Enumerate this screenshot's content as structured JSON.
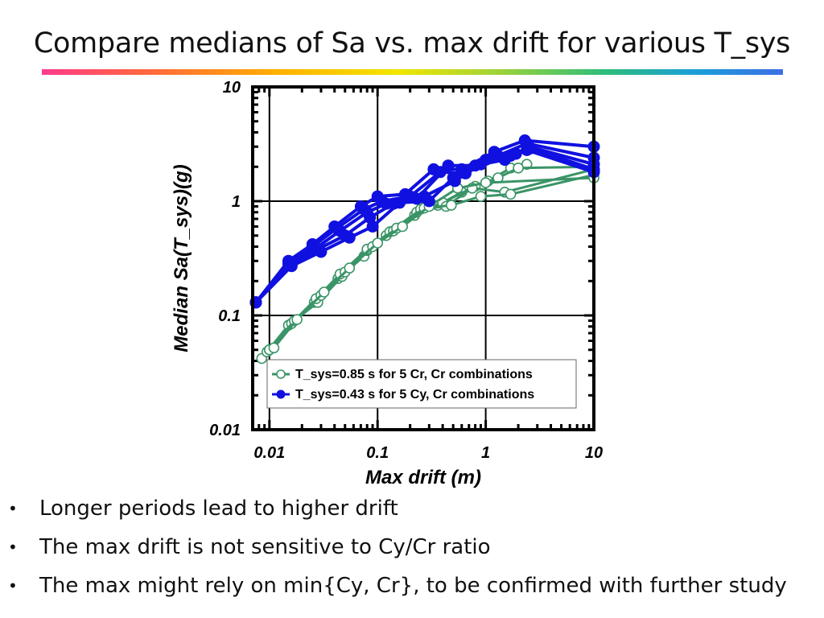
{
  "slide": {
    "title": "Compare medians of Sa vs. max drift for various T_sys",
    "bullets": [
      "Longer periods lead to higher drift",
      "The max drift is not sensitive to Cy/Cr ratio",
      "The max might rely on min{Cy, Cr}, to be confirmed with further study"
    ],
    "bullet_glyph": "•"
  },
  "chart_data": {
    "type": "line",
    "title": "",
    "xlabel": "Max drift (m)",
    "ylabel": "Median Sa(T_sys)(g)",
    "x_scale": "log",
    "y_scale": "log",
    "xlim": [
      0.007,
      10
    ],
    "ylim": [
      0.01,
      10
    ],
    "x_ticks": [
      0.01,
      0.1,
      1,
      10
    ],
    "x_tick_labels": [
      "0.01",
      "0.1",
      "1",
      "10"
    ],
    "y_ticks": [
      0.01,
      0.1,
      1,
      10
    ],
    "y_tick_labels": [
      "0.01",
      "0.1",
      "1",
      "10"
    ],
    "grid": true,
    "legend_position": "bottom-right",
    "series": [
      {
        "name": "T_sys=0.85 s for 5 Cr, Cr combinations",
        "color": "#3a9467",
        "marker": "open-circle",
        "curves": [
          [
            [
              0.0085,
              0.042
            ],
            [
              0.016,
              0.085
            ],
            [
              0.026,
              0.13
            ],
            [
              0.043,
              0.21
            ],
            [
              0.075,
              0.33
            ],
            [
              0.12,
              0.5
            ],
            [
              0.22,
              0.75
            ],
            [
              0.36,
              0.92
            ],
            [
              0.6,
              1.2
            ],
            [
              1.05,
              1.5
            ],
            [
              1.7,
              1.95
            ],
            [
              2.4,
              2.1
            ]
          ],
          [
            [
              0.0095,
              0.048
            ],
            [
              0.015,
              0.082
            ],
            [
              0.028,
              0.13
            ],
            [
              0.047,
              0.22
            ],
            [
              0.08,
              0.37
            ],
            [
              0.13,
              0.54
            ],
            [
              0.23,
              0.8
            ],
            [
              0.4,
              0.97
            ],
            [
              0.8,
              1.35
            ],
            [
              1.3,
              1.6
            ],
            [
              2.0,
              1.95
            ],
            [
              10,
              2.0
            ]
          ],
          [
            [
              0.01,
              0.05
            ],
            [
              0.016,
              0.085
            ],
            [
              0.027,
              0.14
            ],
            [
              0.045,
              0.23
            ],
            [
              0.08,
              0.38
            ],
            [
              0.14,
              0.55
            ],
            [
              0.25,
              0.85
            ],
            [
              0.43,
              0.9
            ],
            [
              0.75,
              1.3
            ],
            [
              1.5,
              1.2
            ],
            [
              10,
              1.9
            ]
          ],
          [
            [
              0.01,
              0.05
            ],
            [
              0.017,
              0.09
            ],
            [
              0.03,
              0.15
            ],
            [
              0.05,
              0.24
            ],
            [
              0.09,
              0.4
            ],
            [
              0.15,
              0.58
            ],
            [
              0.27,
              0.87
            ],
            [
              0.48,
              0.92
            ],
            [
              0.9,
              1.1
            ],
            [
              1.7,
              1.15
            ],
            [
              10,
              1.7
            ]
          ],
          [
            [
              0.011,
              0.052
            ],
            [
              0.018,
              0.092
            ],
            [
              0.032,
              0.16
            ],
            [
              0.055,
              0.26
            ],
            [
              0.1,
              0.43
            ],
            [
              0.17,
              0.6
            ],
            [
              0.3,
              0.9
            ],
            [
              0.55,
              1.3
            ],
            [
              1.0,
              1.45
            ],
            [
              10,
              1.6
            ]
          ]
        ]
      },
      {
        "name": "T_sys=0.43 s for 5 Cy, Cr combinations",
        "color": "#1010e0",
        "marker": "filled-circle",
        "curves": [
          [
            [
              0.0075,
              0.13
            ],
            [
              0.015,
              0.3
            ],
            [
              0.025,
              0.42
            ],
            [
              0.04,
              0.6
            ],
            [
              0.07,
              0.9
            ],
            [
              0.1,
              1.1
            ],
            [
              0.18,
              1.15
            ],
            [
              0.33,
              1.9
            ],
            [
              0.6,
              1.9
            ],
            [
              1.2,
              2.7
            ],
            [
              2.3,
              3.4
            ],
            [
              10,
              3.0
            ]
          ],
          [
            [
              0.0075,
              0.13
            ],
            [
              0.015,
              0.29
            ],
            [
              0.025,
              0.4
            ],
            [
              0.042,
              0.58
            ],
            [
              0.075,
              0.85
            ],
            [
              0.11,
              1.0
            ],
            [
              0.2,
              1.1
            ],
            [
              0.38,
              1.8
            ],
            [
              0.65,
              1.75
            ],
            [
              1.3,
              2.5
            ],
            [
              2.4,
              3.2
            ],
            [
              10,
              2.4
            ]
          ],
          [
            [
              0.0075,
              0.13
            ],
            [
              0.015,
              0.28
            ],
            [
              0.026,
              0.38
            ],
            [
              0.045,
              0.55
            ],
            [
              0.08,
              0.8
            ],
            [
              0.12,
              0.95
            ],
            [
              0.23,
              1.05
            ],
            [
              0.45,
              2.05
            ],
            [
              0.8,
              2.05
            ],
            [
              1.5,
              2.3
            ],
            [
              2.5,
              3.0
            ],
            [
              10,
              2.1
            ]
          ],
          [
            [
              0.0075,
              0.13
            ],
            [
              0.016,
              0.28
            ],
            [
              0.028,
              0.38
            ],
            [
              0.05,
              0.5
            ],
            [
              0.085,
              0.72
            ],
            [
              0.14,
              0.95
            ],
            [
              0.27,
              1.1
            ],
            [
              0.52,
              1.5
            ],
            [
              0.9,
              2.1
            ],
            [
              1.7,
              2.5
            ],
            [
              2.6,
              2.9
            ],
            [
              10,
              1.9
            ]
          ],
          [
            [
              0.0075,
              0.13
            ],
            [
              0.016,
              0.27
            ],
            [
              0.03,
              0.36
            ],
            [
              0.055,
              0.48
            ],
            [
              0.09,
              0.6
            ],
            [
              0.16,
              0.97
            ],
            [
              0.3,
              1.0
            ],
            [
              0.5,
              1.6
            ],
            [
              1.0,
              2.3
            ],
            [
              1.9,
              2.6
            ],
            [
              2.4,
              2.8
            ],
            [
              10,
              1.8
            ]
          ]
        ]
      }
    ]
  }
}
